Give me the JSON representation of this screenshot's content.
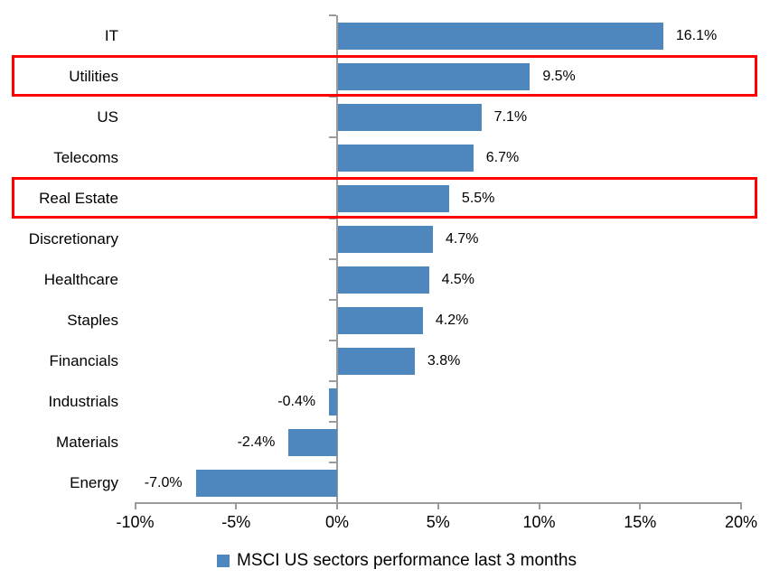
{
  "chart_data": {
    "type": "bar",
    "orientation": "horizontal",
    "title": "",
    "categories": [
      "IT",
      "Utilities",
      "US",
      "Telecoms",
      "Real Estate",
      "Discretionary",
      "Healthcare",
      "Staples",
      "Financials",
      "Industrials",
      "Materials",
      "Energy"
    ],
    "values": [
      16.1,
      9.5,
      7.1,
      6.7,
      5.5,
      4.7,
      4.5,
      4.2,
      3.8,
      -0.4,
      -2.4,
      -7.0
    ],
    "value_labels": [
      "16.1%",
      "9.5%",
      "7.1%",
      "6.7%",
      "5.5%",
      "4.7%",
      "4.5%",
      "4.2%",
      "3.8%",
      "-0.4%",
      "-2.4%",
      "-7.0%"
    ],
    "x_ticks": [
      -10,
      -5,
      0,
      5,
      10,
      15,
      20
    ],
    "x_tick_labels": [
      "-10%",
      "-5%",
      "0%",
      "5%",
      "10%",
      "15%",
      "20%"
    ],
    "xlim": [
      -10,
      20
    ],
    "grid": false,
    "legend": "MSCI US sectors performance last 3 months",
    "legend_position": "bottom",
    "bar_color": "#4e86be",
    "axis_color": "#9b9b9b",
    "highlight_color": "#ff0000",
    "highlighted_categories": [
      "Utilities",
      "Real Estate"
    ]
  }
}
